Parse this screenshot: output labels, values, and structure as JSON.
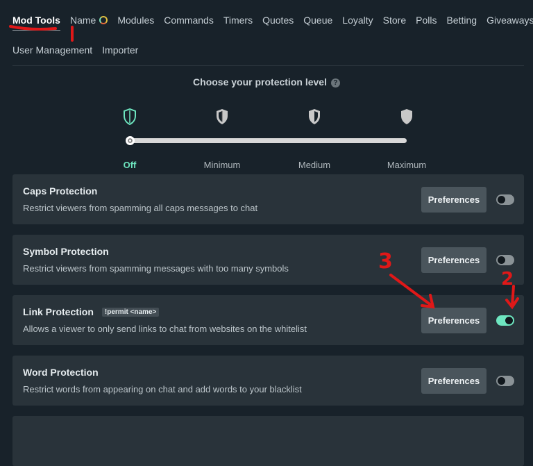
{
  "nav": {
    "row1": [
      "Mod Tools",
      "Name",
      "Modules",
      "Commands",
      "Timers",
      "Quotes",
      "Queue",
      "Loyalty",
      "Store",
      "Polls",
      "Betting",
      "Giveaways"
    ],
    "row2": [
      "User Management",
      "Importer"
    ],
    "active": "Mod Tools"
  },
  "protection": {
    "title": "Choose your protection level",
    "help_icon": "?",
    "levels": [
      "Off",
      "Minimum",
      "Medium",
      "Maximum"
    ],
    "selected_level": "Off",
    "accent": "#6ee6c0"
  },
  "cards": [
    {
      "name": "Caps Protection",
      "desc": "Restrict viewers from spamming all caps messages to chat",
      "button": "Preferences",
      "enabled": false
    },
    {
      "name": "Symbol Protection",
      "desc": "Restrict viewers from spamming messages with too many symbols",
      "button": "Preferences",
      "enabled": false
    },
    {
      "name": "Link Protection",
      "badge": "!permit <name>",
      "desc": "Allows a viewer to only send links to chat from websites on the whitelist",
      "button": "Preferences",
      "enabled": true
    },
    {
      "name": "Word Protection",
      "desc": "Restrict words from appearing on chat and add words to your blacklist",
      "button": "Preferences",
      "enabled": false
    }
  ],
  "annotations": {
    "one": "1",
    "two": "2",
    "three": "3",
    "color": "#e01818"
  }
}
